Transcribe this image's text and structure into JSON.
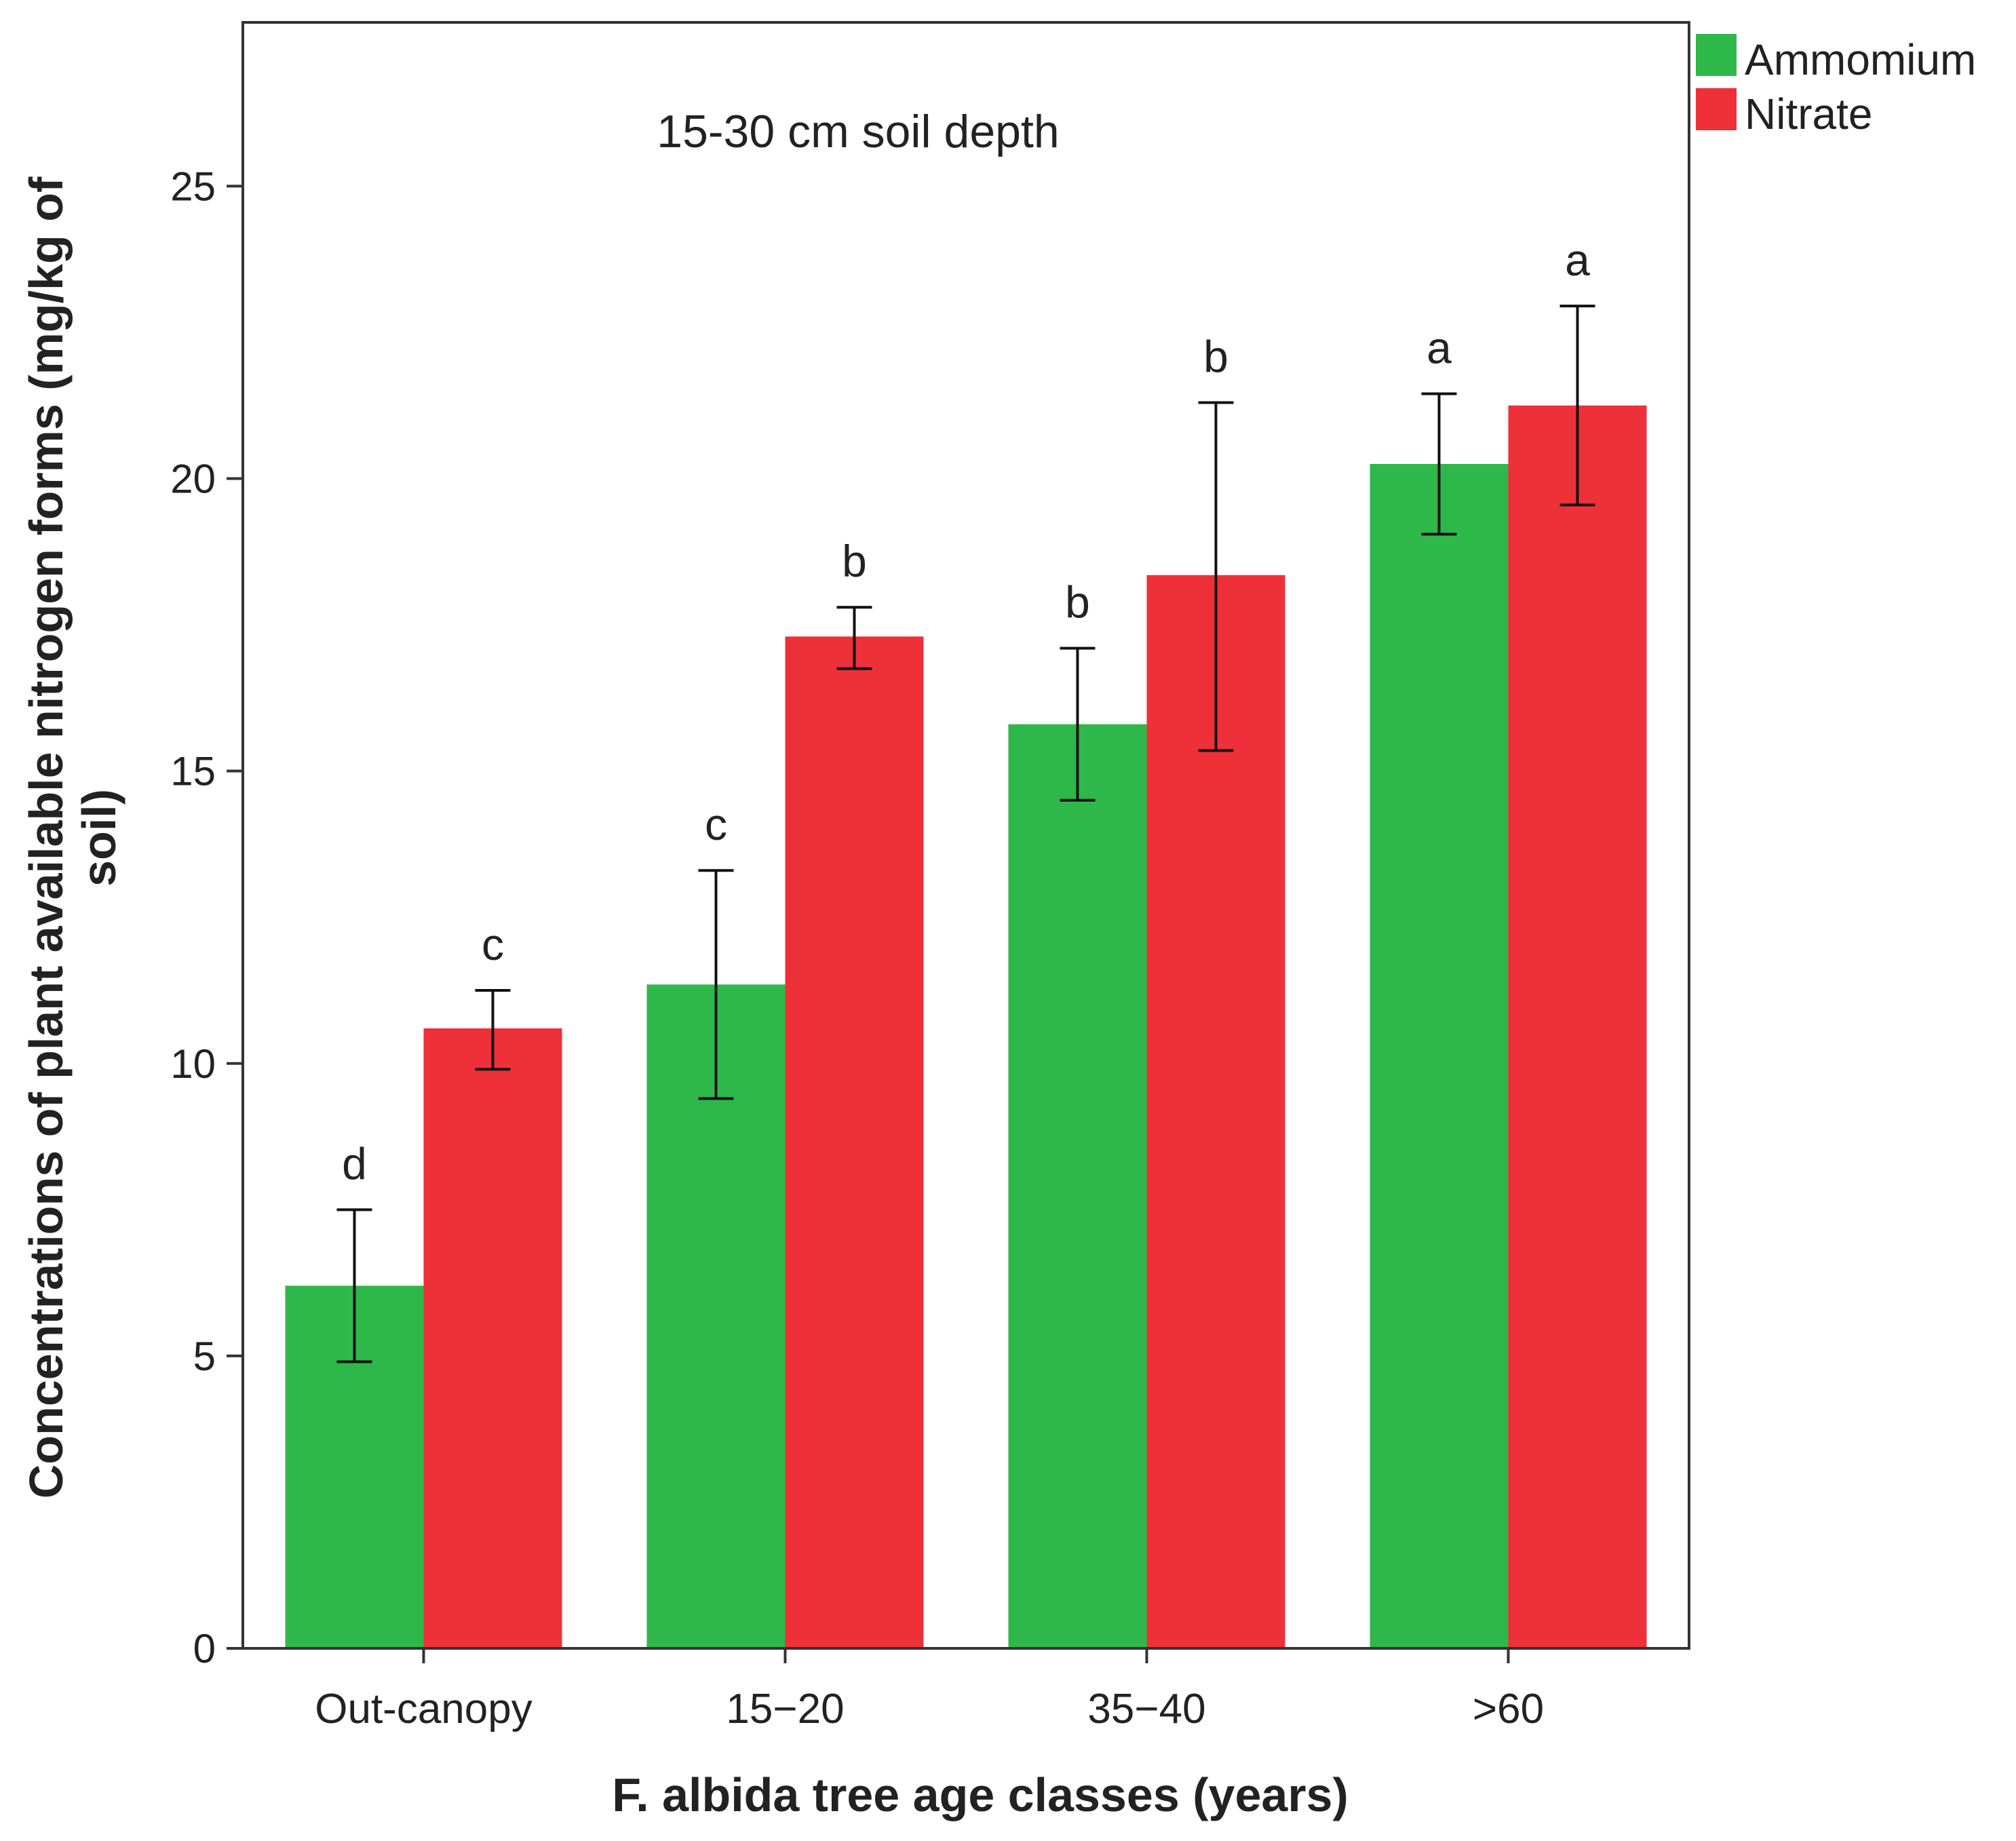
{
  "chart_data": {
    "type": "bar",
    "title": "",
    "annotation": "15-30 cm soil depth",
    "xlabel": "F. albida tree age classes (years)",
    "ylabel_lines": [
      "Concentrations of plant available nitrogen forms (mg/kg of",
      "soil)"
    ],
    "categories": [
      "Out-canopy",
      "15−20",
      "35−40",
      ">60"
    ],
    "ylim": [
      0,
      27.8
    ],
    "yticks": [
      0,
      5,
      10,
      15,
      20,
      25
    ],
    "grid": false,
    "legend_position": "top-right outside",
    "series": [
      {
        "name": "Ammomium",
        "color": "#2eb84a",
        "values": [
          6.2,
          11.35,
          15.8,
          20.25
        ],
        "error_low": [
          4.9,
          9.4,
          14.5,
          19.05
        ],
        "error_high": [
          7.5,
          13.3,
          17.1,
          21.45
        ],
        "letters": [
          "d",
          "c",
          "b",
          "a"
        ]
      },
      {
        "name": "Nitrate",
        "color": "#ee3038",
        "values": [
          10.6,
          17.3,
          18.35,
          21.25
        ],
        "error_low": [
          9.9,
          16.75,
          15.35,
          19.55
        ],
        "error_high": [
          11.25,
          17.8,
          21.3,
          22.95
        ],
        "letters": [
          "c",
          "b",
          "b",
          "a"
        ]
      }
    ]
  }
}
